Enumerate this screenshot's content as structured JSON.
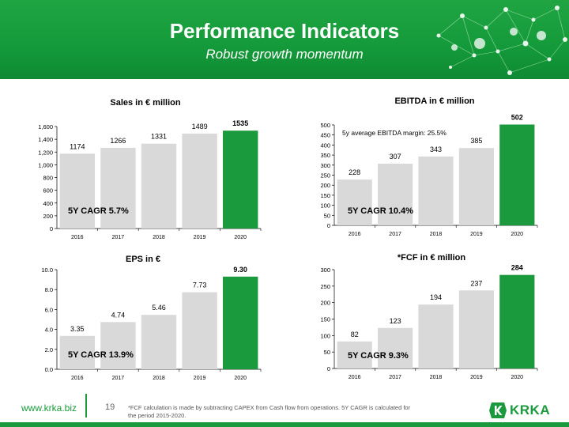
{
  "header": {
    "title": "Performance Indicators",
    "subtitle": "Robust growth momentum"
  },
  "footer": {
    "url": "www.krka.biz",
    "page_number": "19",
    "footnote": "*FCF calculation is made by subtracting CAPEX from Cash flow from operations. 5Y CAGR is calculated for the period 2015-2020.",
    "logo_text": "KRKA"
  },
  "colors": {
    "brand_green": "#1a9a3c",
    "bar_gray": "#d9d9d9",
    "bar_highlight": "#1a9a3c"
  },
  "chart_data": [
    {
      "id": "sales",
      "type": "bar",
      "title": "Sales in € million",
      "categories": [
        "2016",
        "2017",
        "2018",
        "2019",
        "2020"
      ],
      "values": [
        1174,
        1266,
        1331,
        1489,
        1535
      ],
      "value_labels": [
        "1174",
        "1266",
        "1331",
        "1489",
        "1535"
      ],
      "ylim": [
        0,
        1600
      ],
      "yticks": [
        0,
        200,
        400,
        600,
        800,
        1000,
        1200,
        1400,
        1600
      ],
      "ytick_labels": [
        "0",
        "200",
        "400",
        "600",
        "800",
        "1,000",
        "1,200",
        "1,400",
        "1,600"
      ],
      "highlight_index": 4,
      "annotations": [
        "5Y CAGR 5.7%"
      ],
      "grid": false
    },
    {
      "id": "ebitda",
      "type": "bar",
      "title": "EBITDA in € million",
      "categories": [
        "2016",
        "2017",
        "2018",
        "2019",
        "2020"
      ],
      "values": [
        228,
        307,
        343,
        385,
        502
      ],
      "value_labels": [
        "228",
        "307",
        "343",
        "385",
        "502"
      ],
      "ylim": [
        0,
        500
      ],
      "yticks": [
        0,
        50,
        100,
        150,
        200,
        250,
        300,
        350,
        400,
        450,
        500
      ],
      "ytick_labels": [
        "0",
        "50",
        "100",
        "150",
        "200",
        "250",
        "300",
        "350",
        "400",
        "450",
        "500"
      ],
      "highlight_index": 4,
      "annotations": [
        "5Y CAGR 10.4%",
        "5y average EBITDA margin: 25.5%"
      ],
      "grid": false
    },
    {
      "id": "eps",
      "type": "bar",
      "title": "EPS in €",
      "categories": [
        "2016",
        "2017",
        "2018",
        "2019",
        "2020"
      ],
      "values": [
        3.35,
        4.74,
        5.46,
        7.73,
        9.3
      ],
      "value_labels": [
        "3.35",
        "4.74",
        "5.46",
        "7.73",
        "9.30"
      ],
      "ylim": [
        0,
        10
      ],
      "yticks": [
        0,
        2,
        4,
        6,
        8,
        10
      ],
      "ytick_labels": [
        "0.0",
        "2.0",
        "4.0",
        "6.0",
        "8.0",
        "10.0"
      ],
      "highlight_index": 4,
      "annotations": [
        "5Y CAGR 13.9%"
      ],
      "grid": false
    },
    {
      "id": "fcf",
      "type": "bar",
      "title": "*FCF in € million",
      "categories": [
        "2016",
        "2017",
        "2018",
        "2019",
        "2020"
      ],
      "values": [
        82,
        123,
        194,
        237,
        284
      ],
      "value_labels": [
        "82",
        "123",
        "194",
        "237",
        "284"
      ],
      "ylim": [
        0,
        300
      ],
      "yticks": [
        0,
        50,
        100,
        150,
        200,
        250,
        300
      ],
      "ytick_labels": [
        "0",
        "50",
        "100",
        "150",
        "200",
        "250",
        "300"
      ],
      "highlight_index": 4,
      "annotations": [
        "5Y CAGR 9.3%"
      ],
      "grid": false
    }
  ]
}
